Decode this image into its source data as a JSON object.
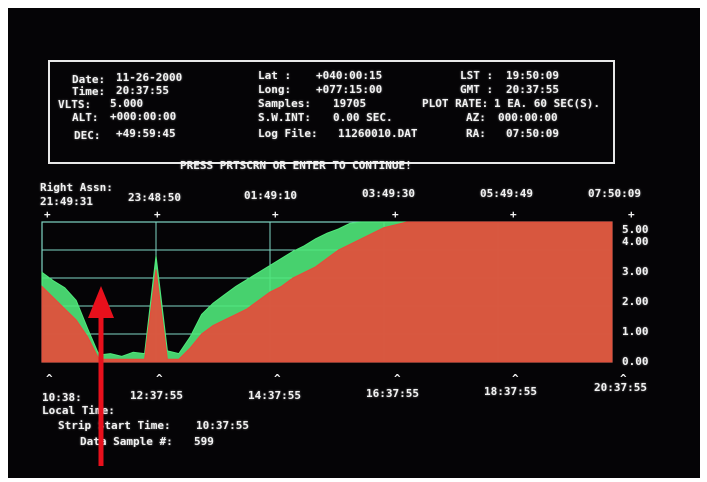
{
  "header": {
    "date_label": "Date:",
    "date_value": "11-26-2000",
    "time_label": "Time:",
    "time_value": "20:37:55",
    "volts_label": "VLTS:",
    "volts_value": "5.000",
    "alt_label": "ALT:",
    "alt_value": "+000:00:00",
    "dec_label": "DEC:",
    "dec_value": "+49:59:45",
    "lat_label": "Lat :",
    "lat_value": "+040:00:15",
    "long_label": "Long:",
    "long_value": "+077:15:00",
    "samples_label": "Samples:",
    "samples_value": "19705",
    "swint_label": "S.W.INT:",
    "swint_value": "0.00 SEC.",
    "logfile_label": "Log File:",
    "logfile_value": "11260010.DAT",
    "lst_label": "LST :",
    "lst_value": "19:50:09",
    "gmt_label": "GMT :",
    "gmt_value": "20:37:55",
    "plotrate_label": "PLOT RATE:",
    "plotrate_value": "1 EA. 60 SEC(S).",
    "az_label": "AZ:",
    "az_value": "000:00:00",
    "ra_label": "RA:",
    "ra_value": "07:50:09"
  },
  "prompt": "PRESS PRTSCRN OR ENTER TO CONTINUE!",
  "ra_axis": {
    "title": "Right Assn:",
    "ticks": [
      "21:49:31",
      "23:48:50",
      "01:49:10",
      "03:49:30",
      "05:49:49",
      "07:50:09"
    ]
  },
  "local_axis": {
    "title": "Local Time:",
    "ticks": [
      "10:38:",
      "12:37:55",
      "14:37:55",
      "16:37:55",
      "18:37:55",
      "20:37:55"
    ]
  },
  "footer": {
    "strip_start_label": "Strip Start Time:",
    "strip_start_value": "10:37:55",
    "data_sample_label": "Data Sample #:",
    "data_sample_value": "599"
  },
  "colors": {
    "background": "#050406",
    "text": "#f2f2f2",
    "grid": "#7fd6c4",
    "trace_green": "#4fe87a",
    "trace_red": "#e8493a",
    "arrow": "#e8101c"
  },
  "chart_data": {
    "type": "area",
    "y_ticks": [
      "5.00",
      "4.00",
      "3.00",
      "2.00",
      "1.00",
      "0.00"
    ],
    "ylim": [
      0,
      5
    ],
    "xlabel": "Local Time:",
    "x_ticks": [
      "10:38:",
      "12:37:55",
      "14:37:55",
      "16:37:55",
      "18:37:55",
      "20:37:55"
    ],
    "series": [
      {
        "color": "green",
        "x": [
          0,
          2,
          4,
          6,
          8,
          10,
          12,
          14,
          16,
          18,
          20,
          22,
          24,
          26,
          28,
          30,
          32,
          34,
          36,
          38,
          40,
          42,
          44,
          46,
          48,
          50,
          52,
          54,
          56,
          58,
          60,
          62,
          64,
          66,
          68,
          70,
          72,
          74,
          76,
          78,
          80,
          82,
          84,
          86,
          88,
          90,
          92,
          94,
          96,
          98,
          100
        ],
        "values": [
          3.2,
          2.9,
          2.65,
          2.2,
          1.2,
          0.25,
          0.3,
          0.2,
          0.35,
          0.3,
          3.8,
          0.4,
          0.3,
          0.9,
          1.7,
          2.1,
          2.4,
          2.7,
          2.95,
          3.2,
          3.45,
          3.7,
          3.95,
          4.15,
          4.4,
          4.6,
          4.75,
          4.95,
          5.0,
          5.0,
          5.0,
          5.0,
          5.0,
          5.0,
          5.0,
          5.0,
          5.0,
          5.0,
          5.0,
          5.0,
          5.0,
          5.0,
          5.0,
          5.0,
          5.0,
          5.0,
          5.0,
          5.0,
          5.0,
          5.0,
          5.0
        ]
      },
      {
        "color": "red",
        "x": [
          0,
          2,
          4,
          6,
          8,
          10,
          12,
          14,
          16,
          18,
          20,
          22,
          24,
          26,
          28,
          30,
          32,
          34,
          36,
          38,
          40,
          42,
          44,
          46,
          48,
          50,
          52,
          54,
          56,
          58,
          60,
          62,
          64,
          66,
          68,
          70,
          72,
          74,
          76,
          78,
          80,
          82,
          84,
          86,
          88,
          90,
          92,
          94,
          96,
          98,
          100
        ],
        "values": [
          2.7,
          2.3,
          1.9,
          1.5,
          0.9,
          0.1,
          0.1,
          0.1,
          0.1,
          0.1,
          3.3,
          0.1,
          0.1,
          0.5,
          1.0,
          1.3,
          1.5,
          1.7,
          1.9,
          2.2,
          2.5,
          2.7,
          3.0,
          3.2,
          3.4,
          3.7,
          4.0,
          4.2,
          4.4,
          4.6,
          4.8,
          4.9,
          5.0,
          5.0,
          5.0,
          5.0,
          5.0,
          5.0,
          5.0,
          5.0,
          5.0,
          5.0,
          5.0,
          5.0,
          5.0,
          5.0,
          5.0,
          5.0,
          5.0,
          5.0,
          5.0
        ]
      }
    ]
  }
}
